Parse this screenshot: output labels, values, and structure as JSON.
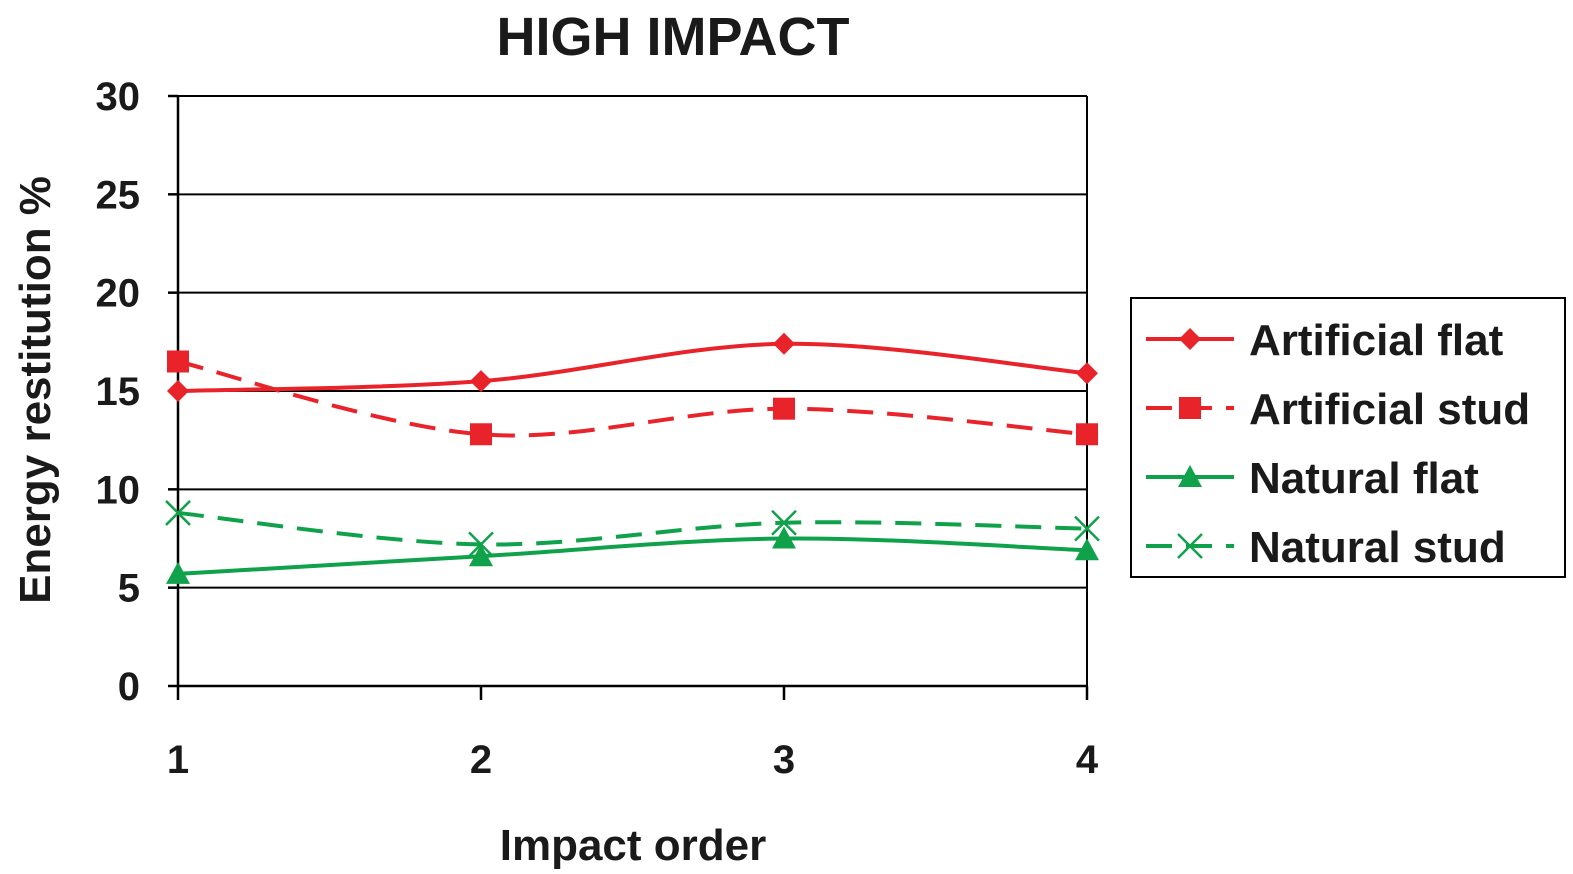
{
  "chart_data": {
    "type": "line",
    "title": "HIGH IMPACT",
    "xlabel": "Impact order",
    "ylabel": "Energy restitution %",
    "categories": [
      "1",
      "2",
      "3",
      "4"
    ],
    "yticks": [
      "0",
      "5",
      "10",
      "15",
      "20",
      "25",
      "30"
    ],
    "ylim": [
      0,
      30
    ],
    "grid": true,
    "legend_position": "right",
    "series": [
      {
        "name": "Artificial flat",
        "values": [
          15.0,
          15.5,
          17.4,
          15.9
        ],
        "color": "#e8232a",
        "dashed": false,
        "marker": "diamond"
      },
      {
        "name": "Artificial stud",
        "values": [
          16.5,
          12.8,
          14.1,
          12.8
        ],
        "color": "#e8232a",
        "dashed": true,
        "marker": "square"
      },
      {
        "name": "Natural flat",
        "values": [
          5.7,
          6.6,
          7.5,
          6.9
        ],
        "color": "#0fa24a",
        "dashed": false,
        "marker": "triangle"
      },
      {
        "name": "Natural stud",
        "values": [
          8.8,
          7.2,
          8.3,
          8.0
        ],
        "color": "#0fa24a",
        "dashed": true,
        "marker": "x"
      }
    ]
  }
}
